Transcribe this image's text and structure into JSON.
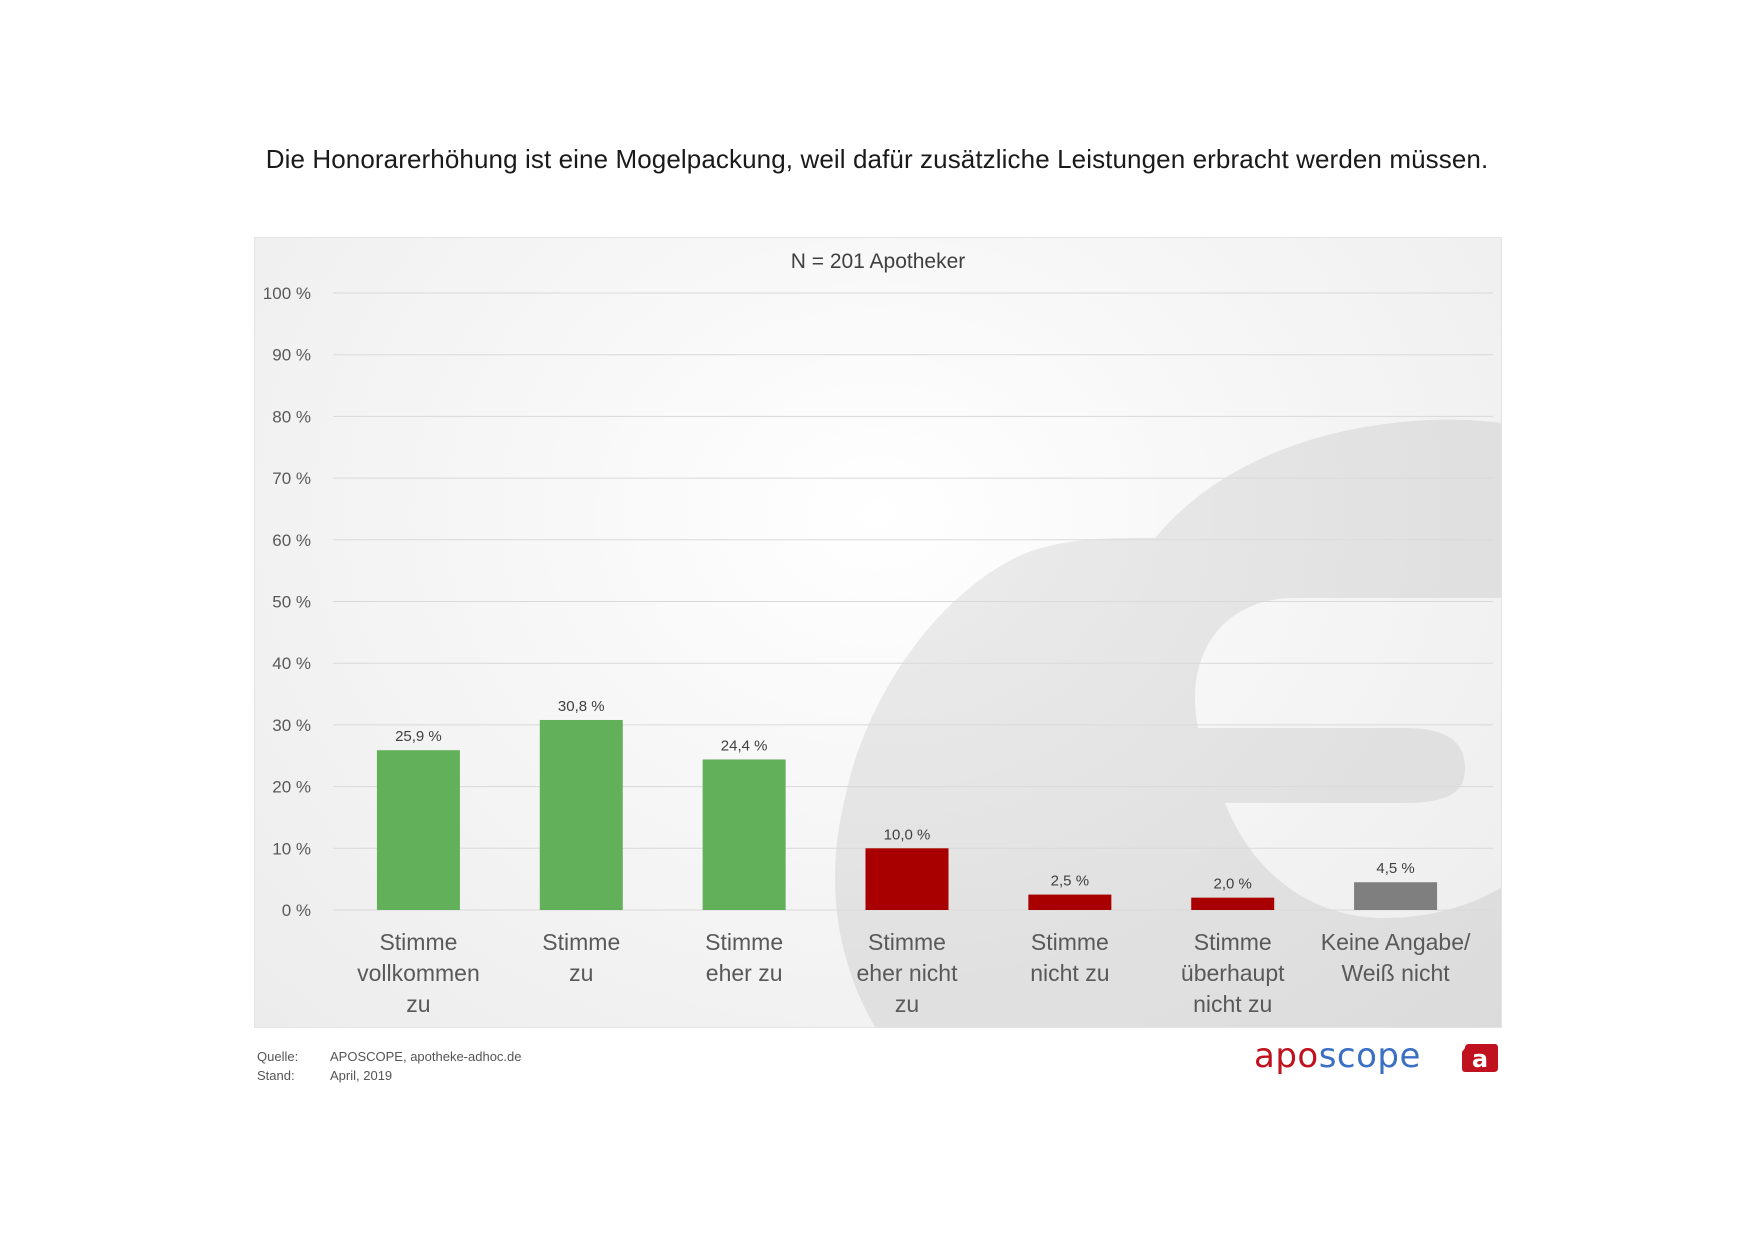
{
  "headline": "Die Honorarerhöhung ist eine Mogelpackung, weil dafür zusätzliche Leistungen erbracht werden müssen.",
  "chart_data": {
    "type": "bar",
    "title": "N = 201 Apotheker",
    "categories": [
      [
        "Stimme",
        "vollkommen",
        "zu"
      ],
      [
        "Stimme",
        "zu"
      ],
      [
        "Stimme",
        "eher zu"
      ],
      [
        "Stimme",
        "eher nicht",
        "zu"
      ],
      [
        "Stimme",
        "nicht zu"
      ],
      [
        "Stimme",
        "überhaupt",
        "nicht zu"
      ],
      [
        "Keine Angabe/",
        "Weiß nicht"
      ]
    ],
    "values": [
      25.9,
      30.8,
      24.4,
      10.0,
      2.5,
      2.0,
      4.5
    ],
    "value_labels": [
      "25,9 %",
      "30,8 %",
      "24,4 %",
      "10,0 %",
      "2,5 %",
      "2,0 %",
      "4,5 %"
    ],
    "bar_colors": [
      "#63b05a",
      "#63b05a",
      "#63b05a",
      "#a80000",
      "#a80000",
      "#a80000",
      "#7f7f7f"
    ],
    "ylim": [
      0,
      100
    ],
    "y_ticks": [
      0,
      10,
      20,
      30,
      40,
      50,
      60,
      70,
      80,
      90,
      100
    ],
    "y_tick_labels": [
      "0 %",
      "10 %",
      "20 %",
      "30 %",
      "40 %",
      "50 %",
      "60 %",
      "70 %",
      "80 %",
      "90 %",
      "100 %"
    ],
    "grid": true,
    "xlabel": "",
    "ylabel": ""
  },
  "footer": {
    "source_key": "Quelle:",
    "source_value": "APOSCOPE, apotheke-adhoc.de",
    "date_key": "Stand:",
    "date_value": "April, 2019"
  },
  "logo": {
    "part1": "apo",
    "part2": "scope",
    "badge_letter": "a",
    "brand_red": "#c0121e",
    "brand_blue": "#3a6fc4"
  }
}
